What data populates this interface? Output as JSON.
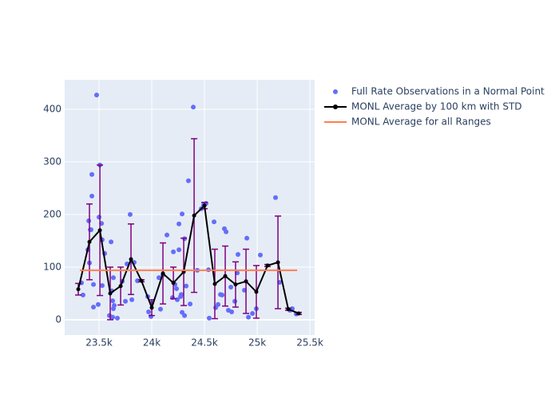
{
  "chart_data": {
    "type": "scatter",
    "xlim": [
      23174,
      25545
    ],
    "ylim": [
      -29,
      456
    ],
    "xticks": [
      {
        "value": 23500,
        "label": "23.5k"
      },
      {
        "value": 24000,
        "label": "24k"
      },
      {
        "value": 24500,
        "label": "24.5k"
      },
      {
        "value": 25000,
        "label": "25k"
      },
      {
        "value": 25500,
        "label": "25.5k"
      }
    ],
    "yticks": [
      0,
      100,
      200,
      300,
      400
    ],
    "grid": true,
    "legend": "outside right",
    "background": "#e5ecf6",
    "series": [
      {
        "name": "Full Rate Observations in a Normal Point",
        "mode": "markers",
        "color": "#636efa",
        "x": [
          23333,
          23348,
          23394,
          23402,
          23409,
          23417,
          23424,
          23432,
          23432,
          23447,
          23447,
          23477,
          23492,
          23500,
          23508,
          23523,
          23530,
          23530,
          23553,
          23598,
          23614,
          23621,
          23629,
          23629,
          23636,
          23636,
          23644,
          23674,
          23720,
          23750,
          23765,
          23795,
          23811,
          23833,
          23864,
          23962,
          23970,
          23992,
          24000,
          24068,
          24083,
          24106,
          24144,
          24197,
          24205,
          24220,
          24235,
          24242,
          24258,
          24258,
          24273,
          24280,
          24288,
          24288,
          24311,
          24311,
          24326,
          24348,
          24364,
          24394,
          24432,
          24470,
          24492,
          24515,
          24538,
          24545,
          24591,
          24606,
          24629,
          24652,
          24667,
          24689,
          24705,
          24727,
          24750,
          24758,
          24788,
          24811,
          24818,
          24879,
          24902,
          24917,
          24955,
          24992,
          25030,
          25174,
          25212,
          25311,
          25333,
          25371
        ],
        "values": [
          70,
          47,
          133,
          188,
          108,
          171,
          171,
          276,
          235,
          67,
          24,
          427,
          29,
          195,
          294,
          183,
          152,
          65,
          126,
          8,
          148,
          55,
          5,
          36,
          21,
          80,
          27,
          3,
          73,
          35,
          106,
          200,
          38,
          109,
          74,
          44,
          15,
          6,
          32,
          80,
          20,
          85,
          161,
          42,
          129,
          67,
          59,
          38,
          182,
          133,
          44,
          48,
          201,
          14,
          8,
          154,
          64,
          264,
          30,
          404,
          94,
          211,
          218,
          221,
          95,
          3,
          186,
          23,
          29,
          48,
          47,
          173,
          167,
          18,
          62,
          15,
          35,
          89,
          124,
          56,
          155,
          5,
          12,
          21,
          123,
          232,
          71,
          18,
          21,
          11
        ]
      },
      {
        "name": "MONL Average by 100 km with STD",
        "mode": "lines+markers",
        "color": "#000000",
        "error_color": "#800080",
        "x": [
          23303,
          23409,
          23508,
          23606,
          23705,
          23803,
          23902,
          24000,
          24106,
          24205,
          24303,
          24402,
          24500,
          24598,
          24697,
          24795,
          24894,
          24992,
          25098,
          25197,
          25295,
          25394
        ],
        "values": [
          58,
          148,
          170,
          50,
          64,
          115,
          74,
          23,
          88,
          70,
          91,
          198,
          217,
          68,
          83,
          67,
          73,
          53,
          103,
          109,
          20,
          12
        ],
        "errors": [
          11,
          72,
          124,
          50,
          36,
          67,
          2,
          15,
          58,
          30,
          64,
          146,
          6,
          66,
          57,
          43,
          61,
          50,
          2,
          88,
          2,
          2
        ]
      },
      {
        "name": "MONL Average for all Ranges",
        "mode": "lines",
        "color": "#ff7f50",
        "x": [
          23318,
          25379
        ],
        "values": [
          94,
          94
        ]
      }
    ]
  }
}
